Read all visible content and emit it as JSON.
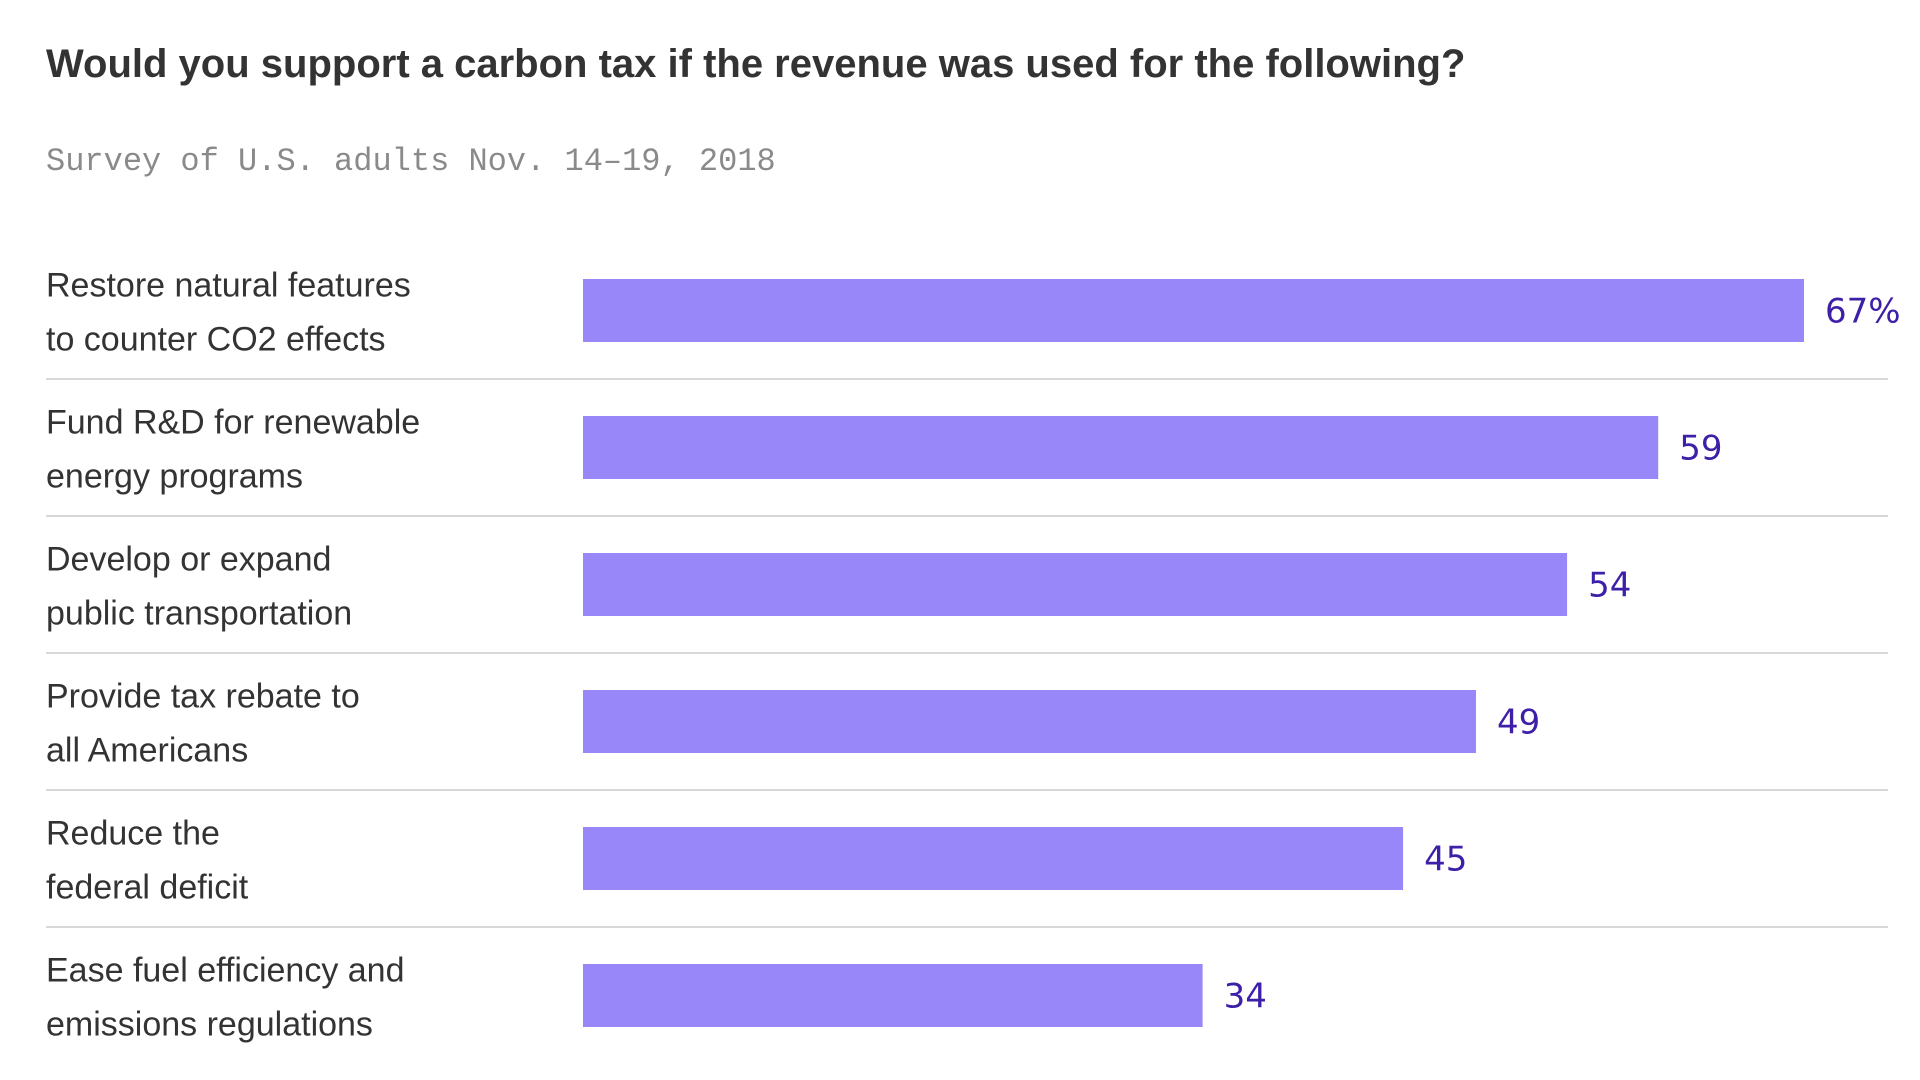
{
  "chart_data": {
    "type": "bar",
    "orientation": "horizontal",
    "title": "Would you support a carbon tax if the revenue was used for the following?",
    "subtitle": "Survey of U.S. adults Nov. 14–19, 2018",
    "categories": [
      [
        "Restore natural features",
        "to counter CO2 effects"
      ],
      [
        "Fund R&D for renewable",
        "energy programs"
      ],
      [
        "Develop or expand",
        "public transportation"
      ],
      [
        "Provide tax rebate to",
        "all Americans"
      ],
      [
        "Reduce the",
        "federal deficit"
      ],
      [
        "Ease fuel efficiency and",
        "emissions regulations"
      ]
    ],
    "values": [
      67,
      59,
      54,
      49,
      45,
      34
    ],
    "value_labels": [
      "67%",
      "59",
      "54",
      "49",
      "45",
      "34"
    ],
    "xlim": [
      0,
      67
    ],
    "grid": false,
    "colors": {
      "bar": "#9887f8",
      "value_text": "#3d1fa8",
      "separator": "#cccccc"
    }
  }
}
